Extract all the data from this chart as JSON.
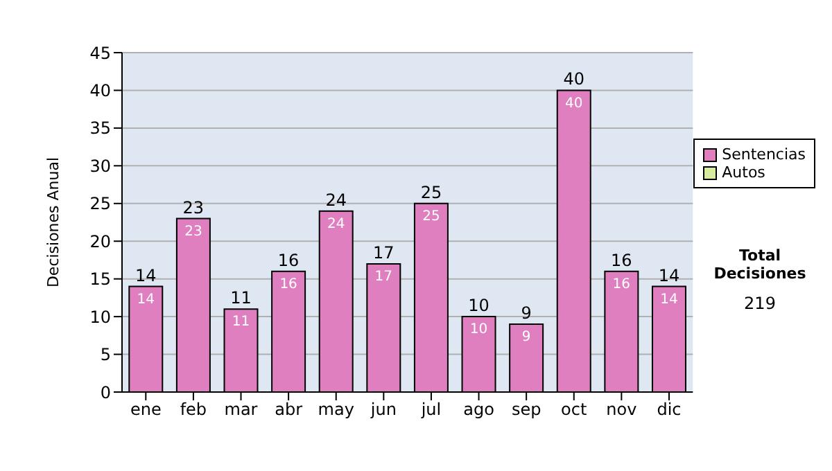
{
  "chart_data": {
    "type": "bar",
    "ylabel": "Decisiones Anual",
    "categories": [
      "ene",
      "feb",
      "mar",
      "abr",
      "may",
      "jun",
      "jul",
      "ago",
      "sep",
      "oct",
      "nov",
      "dic"
    ],
    "series": [
      {
        "name": "Sentencias",
        "color": "#df7fc0",
        "values": [
          14,
          23,
          11,
          16,
          24,
          17,
          25,
          10,
          9,
          40,
          16,
          14
        ]
      },
      {
        "name": "Autos",
        "color": "#d8eca0",
        "values": [
          null,
          null,
          null,
          null,
          null,
          null,
          null,
          null,
          null,
          null,
          null,
          null
        ]
      }
    ],
    "stacked": true,
    "data_labels": true,
    "totals": [
      "14",
      "23",
      "11",
      "16",
      "24",
      "17",
      "25",
      "10",
      "9",
      "40",
      "16",
      "14"
    ],
    "ylim": [
      0,
      45
    ],
    "yticks": [
      0,
      5,
      10,
      15,
      20,
      25,
      30,
      35,
      40,
      45
    ],
    "grid": "y",
    "legend": "right",
    "annotations": [
      "Total Decisiones",
      "219"
    ]
  }
}
